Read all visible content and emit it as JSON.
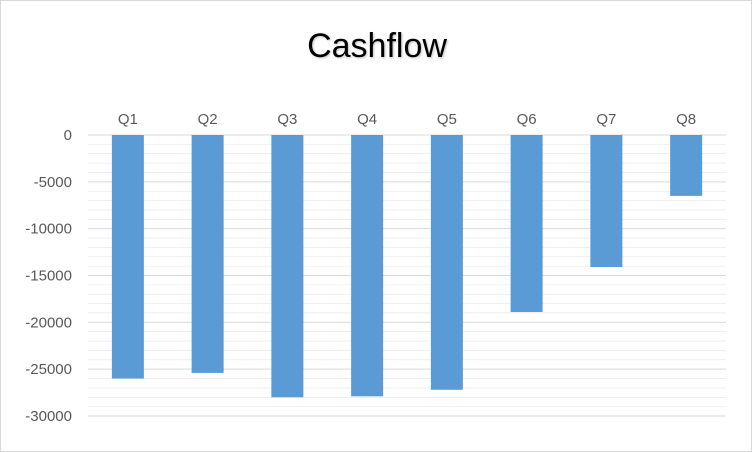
{
  "chart_data": {
    "type": "bar",
    "title": "Cashflow",
    "categories": [
      "Q1",
      "Q2",
      "Q3",
      "Q4",
      "Q5",
      "Q6",
      "Q7",
      "Q8"
    ],
    "values": [
      -26000,
      -25400,
      -28000,
      -27900,
      -27200,
      -18900,
      -14100,
      -6500
    ],
    "xlabel": "",
    "ylabel": "",
    "ylim": [
      -30000,
      0
    ],
    "yticks": [
      0,
      -5000,
      -10000,
      -15000,
      -20000,
      -25000,
      -30000
    ],
    "ytick_labels": [
      "0",
      "-5000",
      "-10000",
      "-15000",
      "-20000",
      "-25000",
      "-30000"
    ],
    "category_labels_position": "top",
    "grid": true,
    "legend": false,
    "bar_color": "#5b9bd5",
    "gridline_color": "#d9d9d9"
  }
}
